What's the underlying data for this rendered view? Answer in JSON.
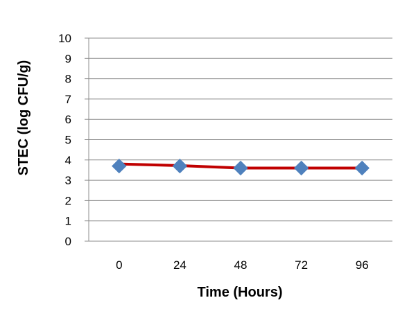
{
  "chart_data": {
    "type": "line",
    "title": "",
    "xlabel": "Time (Hours)",
    "ylabel": "STEC (log CFU/g)",
    "categories": [
      "0",
      "24",
      "48",
      "72",
      "96"
    ],
    "ylim": [
      0,
      10
    ],
    "yticks": [
      "0",
      "1",
      "2",
      "3",
      "4",
      "5",
      "6",
      "7",
      "8",
      "9",
      "10"
    ],
    "grid": true,
    "legend": "none",
    "series": [
      {
        "name": "",
        "line_values": [
          3.8,
          3.72,
          3.6,
          3.6,
          3.6
        ],
        "marker_values": [
          3.7,
          3.7,
          3.6,
          3.6,
          3.6
        ],
        "line_color": "#C00000",
        "marker_color": "#4F81BD",
        "marker": "diamond"
      }
    ]
  }
}
